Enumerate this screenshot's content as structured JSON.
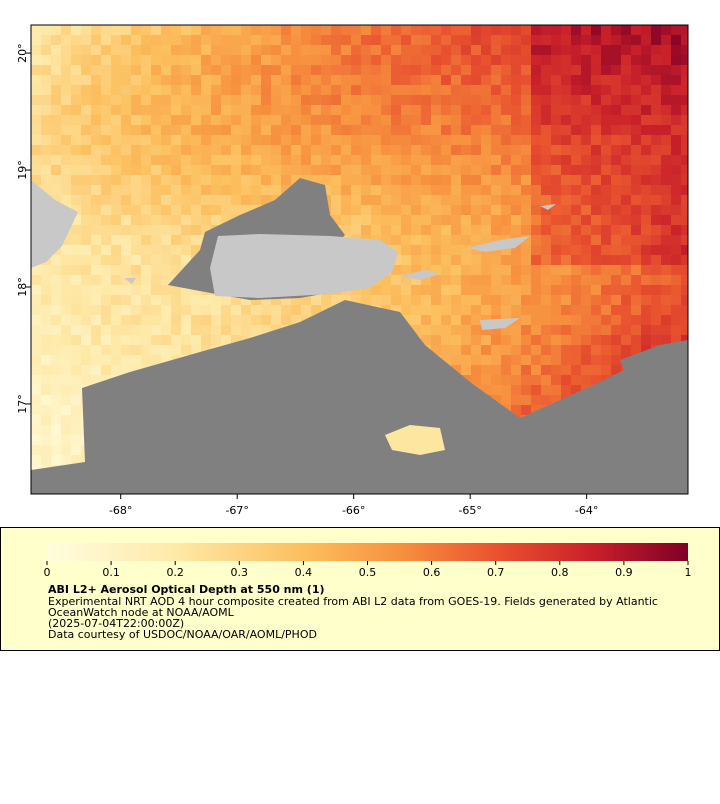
{
  "map": {
    "xlim": [
      -68.77,
      -63.13
    ],
    "ylim": [
      16.23,
      20.24
    ],
    "xticks": [
      {
        "value": -68,
        "label": "-68°"
      },
      {
        "value": -67,
        "label": "-67°"
      },
      {
        "value": -66,
        "label": "-66°"
      },
      {
        "value": -65,
        "label": "-65°"
      },
      {
        "value": -64,
        "label": "-64°"
      }
    ],
    "yticks": [
      {
        "value": 17,
        "label": "17°"
      },
      {
        "value": 18,
        "label": "18°"
      },
      {
        "value": 19,
        "label": "19°"
      },
      {
        "value": 20,
        "label": "20°"
      }
    ]
  },
  "colorbar": {
    "lim": [
      0,
      1
    ],
    "ticks": [
      0,
      0.1,
      0.2,
      0.3,
      0.4,
      0.5,
      0.6,
      0.7,
      0.8,
      0.9,
      1
    ]
  },
  "legend": {
    "title": "ABI L2+ Aerosol Optical Depth at 550 nm (1)",
    "lines": [
      "Experimental NRT AOD 4 hour composite created from ABI L2 data from GOES-19. Fields generated by Atlantic",
      "OceanWatch node at NOAA/AOML",
      "(2025-07-04T22:00:00Z)",
      "Data courtesy of USDOC/NOAA/OAR/AOML/PHOD"
    ]
  }
}
